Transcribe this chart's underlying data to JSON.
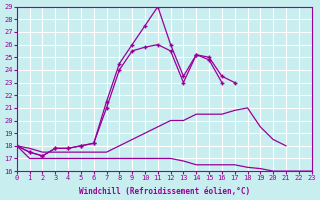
{
  "xlabel": "Windchill (Refroidissement éolien,°C)",
  "x": [
    0,
    1,
    2,
    3,
    4,
    5,
    6,
    7,
    8,
    9,
    10,
    11,
    12,
    13,
    14,
    15,
    16,
    17,
    18,
    19,
    20,
    21,
    22,
    23
  ],
  "line_top": [
    18.0,
    17.5,
    17.2,
    17.8,
    17.8,
    18.0,
    18.2,
    21.5,
    24.5,
    26.0,
    27.5,
    29.0,
    26.0,
    23.5,
    25.2,
    25.0,
    23.5,
    23.0,
    null,
    null,
    null,
    null,
    null,
    null
  ],
  "line_top2": [
    18.0,
    17.5,
    17.2,
    17.8,
    17.8,
    18.0,
    18.2,
    21.0,
    24.0,
    25.5,
    25.8,
    26.0,
    25.5,
    23.0,
    25.2,
    24.8,
    23.0,
    null,
    null,
    null,
    null,
    null,
    null,
    null
  ],
  "line_mid": [
    18.0,
    17.8,
    17.5,
    17.5,
    17.5,
    17.5,
    17.5,
    17.5,
    18.0,
    18.5,
    19.0,
    19.5,
    20.0,
    20.0,
    20.5,
    20.5,
    20.5,
    20.8,
    21.0,
    19.5,
    18.5,
    18.0,
    null,
    null
  ],
  "line_bot": [
    18.0,
    17.0,
    17.0,
    17.0,
    17.0,
    17.0,
    17.0,
    17.0,
    17.0,
    17.0,
    17.0,
    17.0,
    17.0,
    16.8,
    16.5,
    16.5,
    16.5,
    16.5,
    16.3,
    16.2,
    16.0,
    16.0,
    16.0,
    16.0
  ],
  "color": "#990099",
  "bg_color": "#c8eef0",
  "grid_color": "#ffffff",
  "ylim": [
    16,
    29
  ],
  "xlim": [
    0,
    23
  ]
}
